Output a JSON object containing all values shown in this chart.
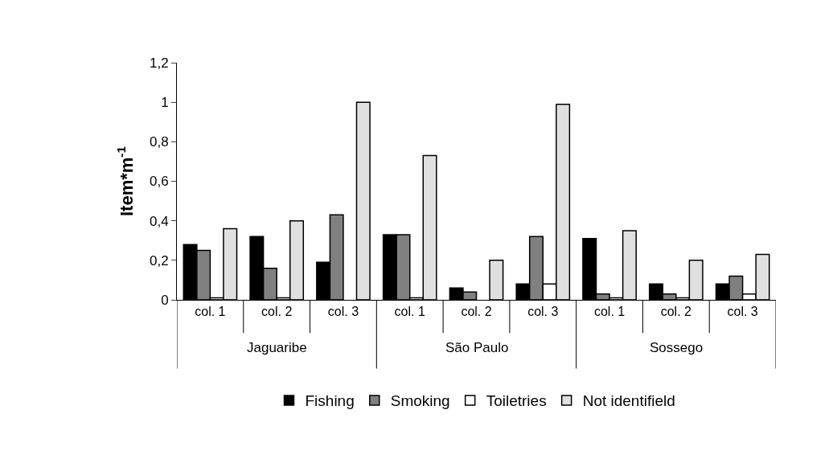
{
  "chart_data": {
    "type": "bar",
    "ylabel": "Item*m$^{-1}$",
    "categories": [
      "col. 1",
      "col. 2",
      "col. 3",
      "col. 1",
      "col. 2",
      "col. 3",
      "col. 1",
      "col. 2",
      "col. 3"
    ],
    "annotations": [
      "Jaguaribe",
      "São Paulo",
      "Sossego"
    ],
    "ylim": [
      0,
      1.2
    ],
    "yticks": [
      0,
      {
        "value": 0.2,
        "label": "0,2"
      },
      {
        "value": 0.4,
        "label": "0,4"
      },
      {
        "value": 0.6,
        "label": "0,6"
      },
      {
        "value": 0.8,
        "label": "0,8"
      },
      1,
      {
        "value": 1.2,
        "label": "1,2"
      }
    ],
    "grid": false,
    "legend": "bottom",
    "series": [
      {
        "name": "Fishing",
        "color": "#000000",
        "values": [
          0.28,
          0.32,
          0.19,
          0.33,
          0.06,
          0.08,
          0.31,
          0.08,
          0.08
        ]
      },
      {
        "name": "Smoking",
        "color": "#808080",
        "values": [
          0.25,
          0.16,
          0.43,
          0.33,
          0.04,
          0.32,
          0.03,
          0.03,
          0.12
        ]
      },
      {
        "name": "Toiletries",
        "color": "#ffffff",
        "values": [
          0.01,
          0.01,
          0,
          0.01,
          0,
          0.08,
          0.01,
          0.01,
          0.03
        ]
      },
      {
        "name": "Not identifield",
        "color": "#e0e0e0",
        "values": [
          0.36,
          0.4,
          1.0,
          0.73,
          0.2,
          0.99,
          0.35,
          0.2,
          0.23
        ]
      }
    ]
  }
}
